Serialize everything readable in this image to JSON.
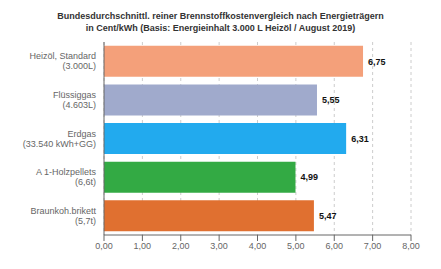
{
  "chart_data": {
    "type": "bar",
    "orientation": "horizontal",
    "title": "Bundesdurchschnittl. reiner Brennstoffkostenvergleich nach Energieträgern",
    "subtitle": "in Cent/kWh (Basis: Energieinhalt  3.000 L Heizöl / August 2019)",
    "categories": [
      "Heizöl, Standard\n(3.000L)",
      "Flüssiggas\n(4.603L)",
      "Erdgas\n(33.540 kWh+GG)",
      "A 1-Holzpellets\n(6,6t)",
      "Braunkoh.brikett\n(5,7t)"
    ],
    "values": [
      6.75,
      5.55,
      6.31,
      4.99,
      5.47
    ],
    "value_labels": [
      "6,75",
      "5,55",
      "6,31",
      "4,99",
      "5,47"
    ],
    "colors": [
      "#F4A07A",
      "#A0AACC",
      "#22AAEE",
      "#33AA44",
      "#E07030"
    ],
    "data_labels": true,
    "xlim": [
      0,
      8.0
    ],
    "xticks": [
      {
        "value": 0.0,
        "label": "0,00"
      },
      {
        "value": 1.0,
        "label": "1,00"
      },
      {
        "value": 2.0,
        "label": "2,00"
      },
      {
        "value": 3.0,
        "label": "3,00"
      },
      {
        "value": 4.0,
        "label": "4,00"
      },
      {
        "value": 5.0,
        "label": "5,00"
      },
      {
        "value": 6.0,
        "label": "6,00"
      },
      {
        "value": 7.0,
        "label": "7,00"
      },
      {
        "value": 8.0,
        "label": "8,00"
      }
    ],
    "grid": true
  }
}
